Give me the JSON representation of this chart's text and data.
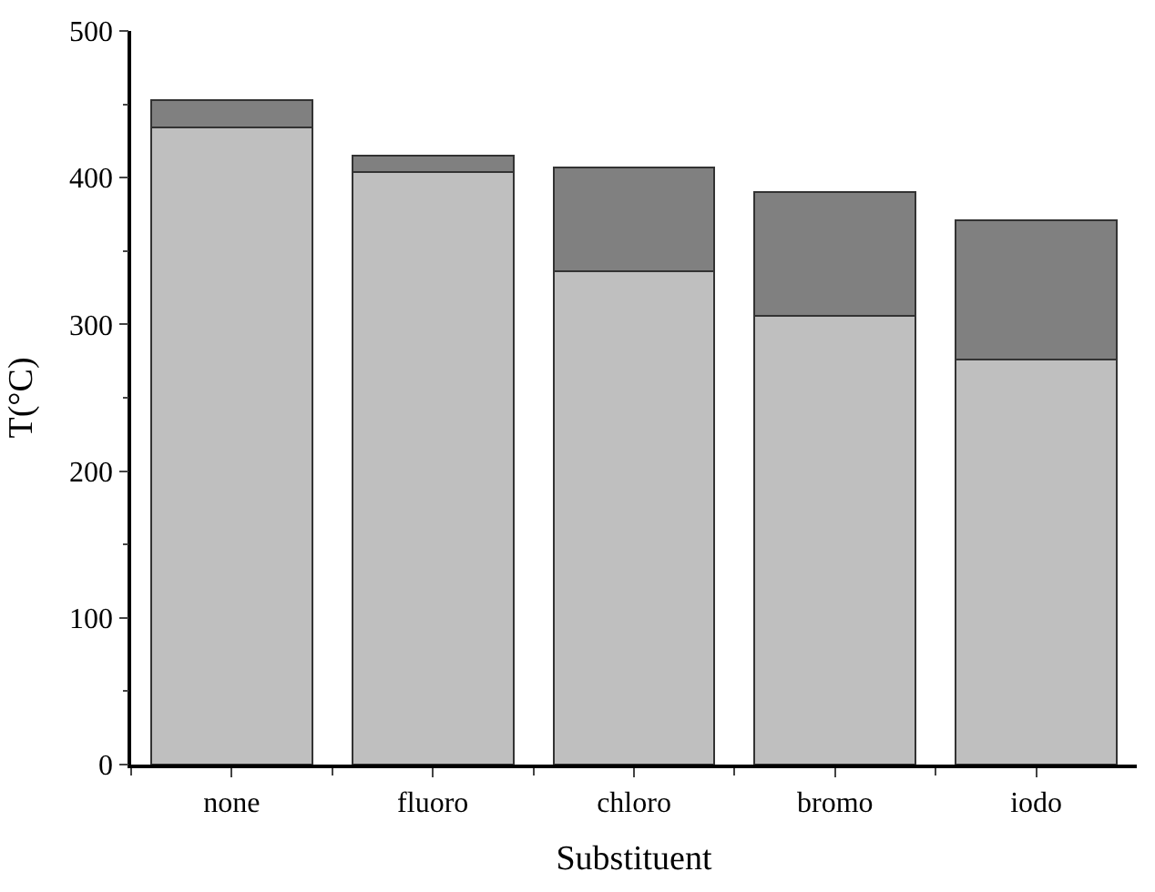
{
  "chart_data": {
    "type": "bar",
    "stacked": true,
    "xlabel": "Substituent",
    "ylabel": "T(°C)",
    "categories": [
      "none",
      "fluoro",
      "chloro",
      "bromo",
      "iodo"
    ],
    "series": [
      {
        "color": "#bfbfbf",
        "values": [
          434,
          404,
          336,
          306,
          276
        ]
      },
      {
        "color": "#808080",
        "values": [
          19,
          11,
          71,
          84,
          95
        ]
      }
    ],
    "ylim": [
      0,
      500
    ],
    "yticks": [
      0,
      100,
      200,
      300,
      400,
      500
    ]
  }
}
